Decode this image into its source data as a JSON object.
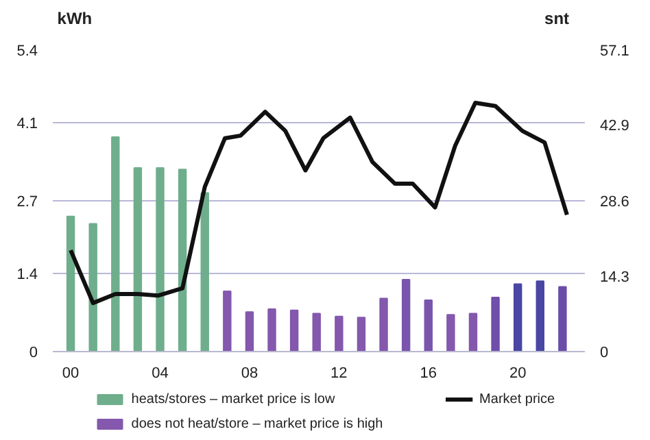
{
  "chart_data": {
    "type": "bar",
    "ylabel": "kWh",
    "y2label": "snt",
    "x": [
      0,
      1,
      2,
      3,
      4,
      5,
      6,
      7,
      8,
      9,
      10,
      11,
      12,
      13,
      14,
      15,
      16,
      17,
      18,
      19,
      20,
      21,
      22
    ],
    "xlim": [
      -0.8,
      23
    ],
    "xticks": [
      {
        "value": 0,
        "label": "00"
      },
      {
        "value": 4,
        "label": "04"
      },
      {
        "value": 8,
        "label": "08"
      },
      {
        "value": 12,
        "label": "12"
      },
      {
        "value": 16,
        "label": "16"
      },
      {
        "value": 20,
        "label": "20"
      }
    ],
    "ylim": [
      0,
      5.4
    ],
    "yticks": [
      0,
      1.4,
      2.7,
      4.1,
      5.4
    ],
    "y2lim": [
      0,
      57.1
    ],
    "y2ticks": [
      0,
      14.3,
      28.6,
      42.9,
      57.1
    ],
    "grid": "y",
    "legend": "bottom",
    "series": [
      {
        "name": "heats/stores – market price is low",
        "color": "#6fae8c",
        "values": [
          2.42,
          2.29,
          3.84,
          3.29,
          3.29,
          3.26,
          2.84,
          null,
          null,
          null,
          null,
          null,
          null,
          null,
          null,
          null,
          null,
          null,
          null,
          null,
          null,
          null,
          null
        ]
      },
      {
        "name": "does not heat/store – market price is high",
        "color": "#8458ad",
        "colors": [
          "#8458ad",
          "#8458ad",
          "#8458ad",
          "#8458ad",
          "#8458ad",
          "#8458ad",
          "#8458ad",
          "#8458ad",
          "#8458ad",
          "#8458ad",
          "#8458ad",
          "#8458ad",
          "#8458ad",
          "#8458ad",
          "#8458ad",
          "#7a55ad",
          "#7a55ad",
          "#8458ad",
          "#8458ad",
          "#6f4faa",
          "#4a46a3",
          "#4a46a3",
          "#6a4ca8"
        ],
        "values": [
          null,
          null,
          null,
          null,
          null,
          null,
          null,
          1.08,
          0.71,
          0.76,
          0.74,
          0.68,
          0.63,
          0.61,
          0.95,
          1.29,
          0.92,
          0.66,
          0.68,
          0.97,
          1.21,
          1.26,
          1.16
        ]
      },
      {
        "name": "Market price",
        "type": "line",
        "axis": "y2",
        "color": "#111111",
        "x": [
          0,
          1,
          2,
          3,
          3.9,
          5,
          6,
          6.9,
          7.6,
          8.7,
          9.6,
          10.5,
          11.3,
          12.5,
          13.5,
          14.5,
          15.3,
          16.3,
          17.2,
          18.1,
          19,
          20.2,
          21.2,
          22.2
        ],
        "values": [
          19.2,
          9.2,
          10.9,
          10.9,
          10.6,
          12.0,
          31.2,
          40.4,
          40.9,
          45.4,
          41.8,
          34.3,
          40.4,
          44.3,
          35.9,
          31.8,
          31.8,
          27.3,
          39.0,
          47.1,
          46.5,
          41.8,
          39.6,
          25.9
        ]
      }
    ]
  }
}
